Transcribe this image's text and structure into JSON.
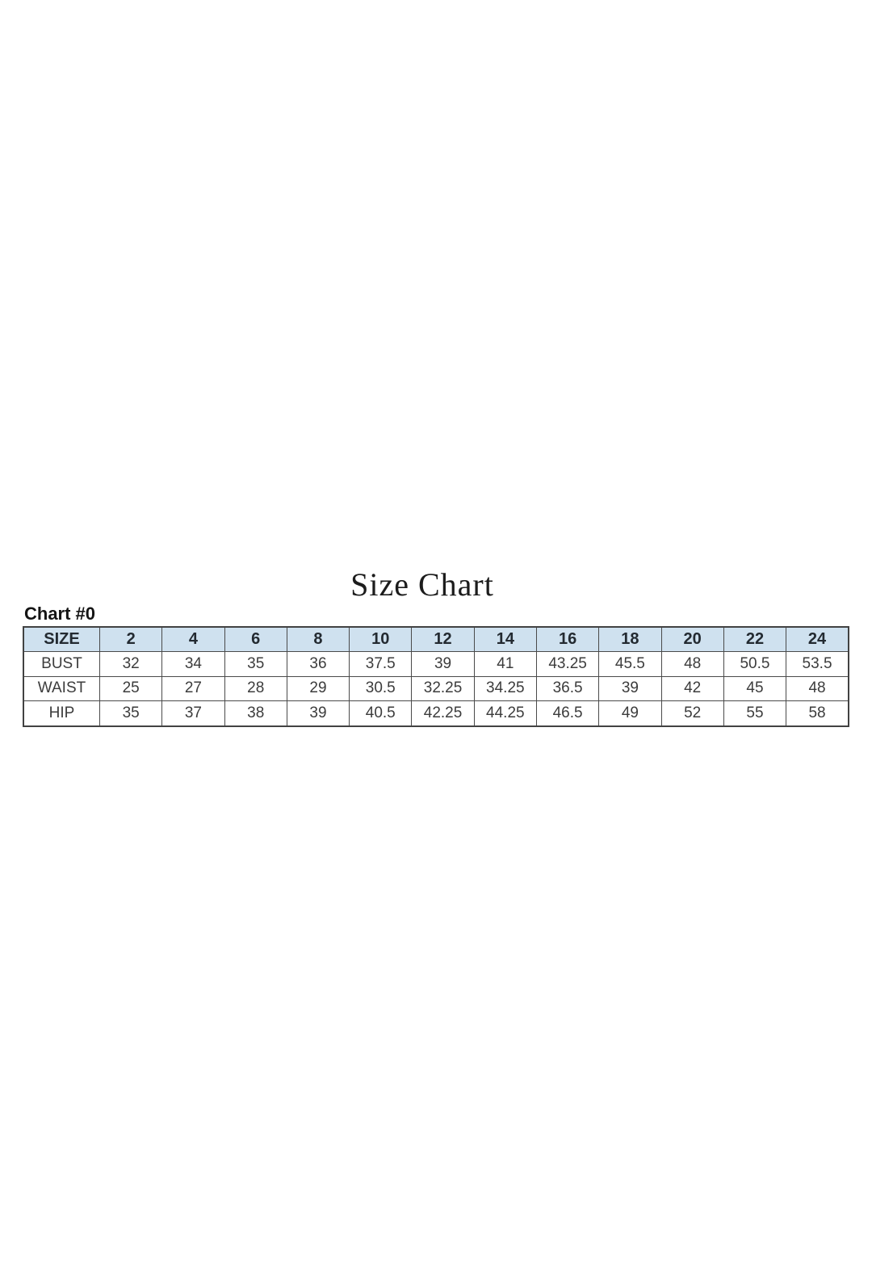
{
  "page": {
    "title": "Size Chart",
    "chart_label": "Chart #0"
  },
  "chart_data": {
    "type": "table",
    "title": "Size Chart",
    "label": "Chart #0",
    "columns": [
      "SIZE",
      "2",
      "4",
      "6",
      "8",
      "10",
      "12",
      "14",
      "16",
      "18",
      "20",
      "22",
      "24"
    ],
    "rows": [
      {
        "label": "BUST",
        "values": [
          "32",
          "34",
          "35",
          "36",
          "37.5",
          "39",
          "41",
          "43.25",
          "45.5",
          "48",
          "50.5",
          "53.5"
        ]
      },
      {
        "label": "WAIST",
        "values": [
          "25",
          "27",
          "28",
          "29",
          "30.5",
          "32.25",
          "34.25",
          "36.5",
          "39",
          "42",
          "45",
          "48"
        ]
      },
      {
        "label": "HIP",
        "values": [
          "35",
          "37",
          "38",
          "39",
          "40.5",
          "42.25",
          "44.25",
          "46.5",
          "49",
          "52",
          "55",
          "58"
        ]
      }
    ],
    "layout": {
      "units": "inches (implied, not labeled)",
      "grid": "on"
    },
    "colors": {
      "header_bg": "#cfe1ef",
      "border": "#4a4a4a",
      "header_text": "#232a31",
      "body_text": "#3c3c3c",
      "page_bg": "#ffffff"
    }
  }
}
